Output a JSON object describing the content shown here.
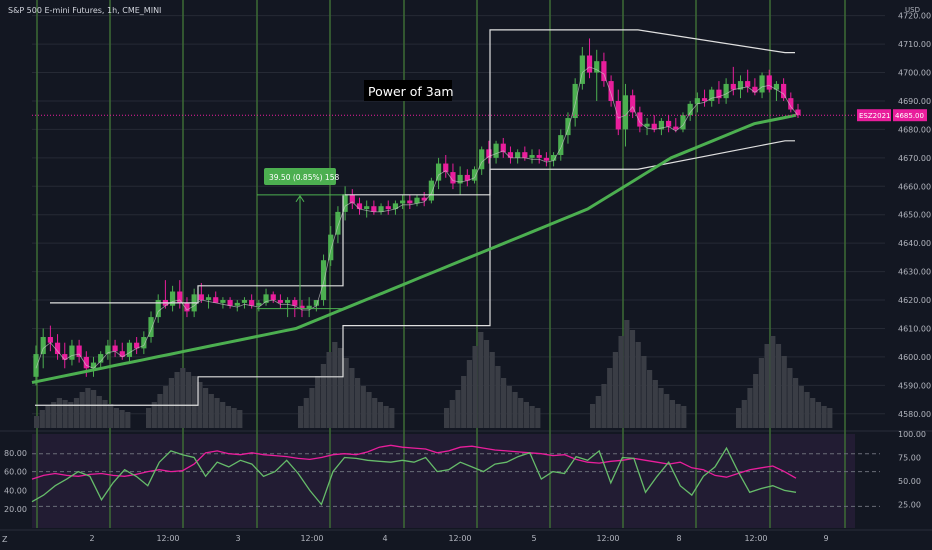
{
  "header": {
    "symbol_title": "S&P 500 E-mini Futures, 1h, CME_MINI"
  },
  "footer": {
    "left_icon": "Z"
  },
  "chart_data": {
    "type": "candlestick",
    "price_axis": {
      "currency": "USD",
      "ticks": [
        4720,
        4710,
        4700,
        4690,
        4680,
        4670,
        4660,
        4650,
        4640,
        4630,
        4620,
        4610,
        4600,
        4590,
        4580
      ],
      "tick_labels": [
        "4720.00",
        "4710.00",
        "4700.00",
        "4690.00",
        "4680.00",
        "4670.00",
        "4660.00",
        "4650.00",
        "4640.00",
        "4630.00",
        "4620.00",
        "4610.00",
        "4600.00",
        "4590.00",
        "4580.00"
      ],
      "range": [
        4575,
        4722
      ]
    },
    "time_axis": {
      "labels": [
        "2",
        "12:00",
        "3",
        "12:00",
        "4",
        "12:00",
        "5",
        "12:00",
        "8",
        "12:00",
        "9"
      ]
    },
    "last_price": {
      "symbol": "ESZ2021",
      "value": "4685.00",
      "value_num": 4685.0
    },
    "annotation": {
      "text": "Power of 3am"
    },
    "measure": {
      "label": "39.50 (0.85%) 158",
      "from": 4617,
      "to": 4657
    },
    "candles": [
      [
        4593,
        4604,
        4590,
        4601
      ],
      [
        4601,
        4610,
        4596,
        4607
      ],
      [
        4607,
        4611,
        4602,
        4605
      ],
      [
        4605,
        4608,
        4599,
        4601
      ],
      [
        4601,
        4605,
        4596,
        4599
      ],
      [
        4599,
        4606,
        4597,
        4604
      ],
      [
        4604,
        4606,
        4598,
        4600
      ],
      [
        4600,
        4602,
        4593,
        4596
      ],
      [
        4596,
        4600,
        4593,
        4598
      ],
      [
        4598,
        4602,
        4596,
        4601
      ],
      [
        4601,
        4606,
        4599,
        4604
      ],
      [
        4604,
        4606,
        4600,
        4602
      ],
      [
        4602,
        4605,
        4599,
        4600
      ],
      [
        4600,
        4606,
        4598,
        4605
      ],
      [
        4605,
        4607,
        4601,
        4603
      ],
      [
        4603,
        4609,
        4601,
        4607
      ],
      [
        4607,
        4616,
        4605,
        4614
      ],
      [
        4614,
        4622,
        4612,
        4620
      ],
      [
        4620,
        4627,
        4617,
        4618
      ],
      [
        4618,
        4625,
        4616,
        4623
      ],
      [
        4623,
        4627,
        4617,
        4619
      ],
      [
        4619,
        4621,
        4614,
        4616
      ],
      [
        4616,
        4624,
        4614,
        4622
      ],
      [
        4622,
        4626,
        4619,
        4620
      ],
      [
        4620,
        4622,
        4617,
        4621
      ],
      [
        4621,
        4623,
        4619,
        4619
      ],
      [
        4619,
        4621,
        4617,
        4620
      ],
      [
        4620,
        4621,
        4617,
        4618
      ],
      [
        4618,
        4620,
        4616,
        4619
      ],
      [
        4619,
        4621,
        4617,
        4620
      ],
      [
        4620,
        4622,
        4617,
        4618
      ],
      [
        4618,
        4620,
        4616,
        4619
      ],
      [
        4619,
        4624,
        4618,
        4622
      ],
      [
        4622,
        4623,
        4619,
        4620
      ],
      [
        4620,
        4622,
        4617,
        4619
      ],
      [
        4619,
        4621,
        4614,
        4620
      ],
      [
        4620,
        4621,
        4614,
        4618
      ],
      [
        4618,
        4620,
        4614,
        4617
      ],
      [
        4617,
        4621,
        4614,
        4618
      ],
      [
        4618,
        4620,
        4616,
        4620
      ],
      [
        4620,
        4636,
        4618,
        4634
      ],
      [
        4634,
        4646,
        4632,
        4643
      ],
      [
        4643,
        4653,
        4640,
        4651
      ],
      [
        4651,
        4660,
        4648,
        4657
      ],
      [
        4657,
        4659,
        4652,
        4654
      ],
      [
        4654,
        4656,
        4650,
        4652
      ],
      [
        4652,
        4655,
        4649,
        4653
      ],
      [
        4653,
        4655,
        4650,
        4651
      ],
      [
        4651,
        4654,
        4650,
        4653
      ],
      [
        4653,
        4655,
        4650,
        4652
      ],
      [
        4652,
        4655,
        4650,
        4654
      ],
      [
        4654,
        4657,
        4652,
        4655
      ],
      [
        4655,
        4657,
        4652,
        4654
      ],
      [
        4654,
        4657,
        4653,
        4656
      ],
      [
        4656,
        4658,
        4653,
        4655
      ],
      [
        4655,
        4663,
        4654,
        4662
      ],
      [
        4662,
        4670,
        4659,
        4668
      ],
      [
        4668,
        4671,
        4663,
        4665
      ],
      [
        4665,
        4668,
        4659,
        4661
      ],
      [
        4661,
        4667,
        4657,
        4664
      ],
      [
        4664,
        4666,
        4660,
        4662
      ],
      [
        4662,
        4667,
        4661,
        4666
      ],
      [
        4666,
        4674,
        4664,
        4673
      ],
      [
        4673,
        4676,
        4668,
        4670
      ],
      [
        4670,
        4676,
        4668,
        4675
      ],
      [
        4675,
        4677,
        4670,
        4672
      ],
      [
        4672,
        4674,
        4668,
        4670
      ],
      [
        4670,
        4673,
        4668,
        4672
      ],
      [
        4672,
        4674,
        4669,
        4670
      ],
      [
        4670,
        4673,
        4668,
        4671
      ],
      [
        4671,
        4673,
        4668,
        4670
      ],
      [
        4670,
        4672,
        4667,
        4669
      ],
      [
        4669,
        4672,
        4667,
        4671
      ],
      [
        4671,
        4680,
        4669,
        4678
      ],
      [
        4678,
        4686,
        4675,
        4684
      ],
      [
        4684,
        4698,
        4681,
        4696
      ],
      [
        4696,
        4709,
        4694,
        4706
      ],
      [
        4706,
        4712,
        4698,
        4700
      ],
      [
        4700,
        4708,
        4690,
        4704
      ],
      [
        4704,
        4707,
        4695,
        4697
      ],
      [
        4697,
        4699,
        4688,
        4690
      ],
      [
        4690,
        4694,
        4678,
        4680
      ],
      [
        4680,
        4696,
        4674,
        4692
      ],
      [
        4692,
        4694,
        4684,
        4686
      ],
      [
        4686,
        4688,
        4679,
        4681
      ],
      [
        4681,
        4684,
        4678,
        4682
      ],
      [
        4682,
        4685,
        4679,
        4680
      ],
      [
        4680,
        4684,
        4678,
        4683
      ],
      [
        4683,
        4685,
        4679,
        4681
      ],
      [
        4681,
        4684,
        4679,
        4680
      ],
      [
        4680,
        4686,
        4679,
        4685
      ],
      [
        4685,
        4690,
        4683,
        4689
      ],
      [
        4689,
        4693,
        4686,
        4691
      ],
      [
        4691,
        4694,
        4688,
        4690
      ],
      [
        4690,
        4695,
        4688,
        4694
      ],
      [
        4694,
        4697,
        4689,
        4691
      ],
      [
        4691,
        4698,
        4689,
        4696
      ],
      [
        4696,
        4702,
        4692,
        4694
      ],
      [
        4694,
        4699,
        4691,
        4697
      ],
      [
        4697,
        4701,
        4693,
        4695
      ],
      [
        4695,
        4698,
        4692,
        4693
      ],
      [
        4693,
        4700,
        4691,
        4699
      ],
      [
        4699,
        4701,
        4693,
        4694
      ],
      [
        4694,
        4697,
        4690,
        4696
      ],
      [
        4696,
        4698,
        4690,
        4691
      ],
      [
        4691,
        4693,
        4686,
        4687
      ],
      [
        4687,
        4689,
        4684,
        4685
      ]
    ],
    "ema": [
      4591,
      4592,
      4593,
      4594,
      4595,
      4596,
      4597,
      4598,
      4599,
      4600,
      4601,
      4602,
      4603,
      4604,
      4605,
      4606,
      4607,
      4608,
      4609,
      4610,
      4612,
      4614,
      4616,
      4618,
      4620,
      4622,
      4624,
      4626,
      4628,
      4630,
      4632,
      4634,
      4636,
      4638,
      4640,
      4642,
      4644,
      4646,
      4648,
      4650,
      4652,
      4655,
      4658,
      4661,
      4664,
      4667,
      4670,
      4672,
      4674,
      4676,
      4678,
      4680,
      4682,
      4683,
      4684,
      4685
    ],
    "vwap_upper": [
      4619,
      4619,
      4625,
      4625,
      4657,
      4657,
      4715,
      4715,
      4715,
      4707
    ],
    "vwap_lower": [
      4583,
      4583,
      4593,
      4593,
      4611,
      4611,
      4666,
      4666,
      4666,
      4676
    ],
    "oscillator": {
      "axis_left": {
        "ticks": [
          80,
          60,
          40,
          20
        ],
        "tick_labels": [
          "80.00",
          "60.00",
          "40.00",
          "20.00"
        ]
      },
      "axis_right": {
        "ticks": [
          100,
          75,
          50,
          25
        ],
        "tick_labels": [
          "100.00",
          "75.00",
          "50.00",
          "25.00"
        ]
      },
      "range": [
        0,
        100
      ],
      "series": [
        {
          "color": "#e91e9c",
          "values": [
            52,
            56,
            58,
            56,
            55,
            57,
            58,
            56,
            55,
            57,
            60,
            62,
            60,
            61,
            68,
            80,
            82,
            79,
            78,
            80,
            78,
            77,
            76,
            74,
            73,
            75,
            78,
            79,
            78,
            81,
            86,
            88,
            86,
            85,
            84,
            80,
            82,
            86,
            87,
            85,
            83,
            82,
            81,
            80,
            79,
            77,
            78,
            73,
            70,
            69,
            71,
            72,
            74,
            72,
            70,
            68,
            70,
            64,
            62,
            56,
            54,
            58,
            62,
            64,
            66,
            60,
            53
          ]
        },
        {
          "color": "#66bb6a",
          "values": [
            28,
            35,
            45,
            52,
            60,
            55,
            30,
            48,
            62,
            55,
            45,
            70,
            82,
            78,
            75,
            55,
            70,
            65,
            72,
            68,
            55,
            60,
            72,
            58,
            40,
            25,
            60,
            75,
            74,
            72,
            71,
            70,
            72,
            70,
            75,
            60,
            62,
            70,
            65,
            60,
            68,
            70,
            76,
            80,
            52,
            60,
            58,
            76,
            72,
            82,
            48,
            75,
            74,
            38,
            55,
            70,
            45,
            35,
            55,
            65,
            85,
            60,
            38,
            42,
            45,
            40,
            38
          ]
        }
      ],
      "levels": [
        79,
        60,
        23
      ]
    },
    "volume_profile": [
      [
        12,
        18,
        22,
        26,
        30,
        28,
        26,
        30,
        36,
        40,
        38,
        32,
        28,
        24,
        20,
        18,
        16
      ],
      [
        20,
        26,
        34,
        42,
        50,
        56,
        60,
        56,
        52,
        46,
        40,
        34,
        30,
        26,
        22,
        20,
        18
      ],
      [
        22,
        30,
        40,
        52,
        64,
        76,
        86,
        80,
        70,
        60,
        50,
        42,
        36,
        30,
        26,
        22,
        20
      ],
      [
        20,
        28,
        38,
        52,
        68,
        82,
        96,
        88,
        76,
        62,
        50,
        42,
        36,
        30,
        26,
        22,
        20
      ],
      [
        24,
        32,
        44,
        60,
        76,
        92,
        108,
        98,
        86,
        72,
        58,
        48,
        40,
        34,
        28,
        24,
        22
      ],
      [
        20,
        28,
        40,
        54,
        70,
        84,
        92,
        84,
        72,
        60,
        50,
        42,
        36,
        30,
        26,
        22,
        20
      ]
    ]
  }
}
